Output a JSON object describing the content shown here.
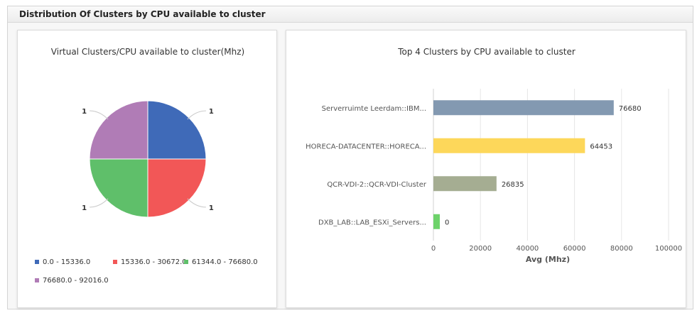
{
  "widget": {
    "title": "Distribution Of Clusters by CPU available to cluster"
  },
  "chart_data": [
    {
      "type": "pie",
      "title": "Virtual Clusters/CPU available to cluster(Mhz)",
      "slices": [
        {
          "label": "0.0 - 15336.0",
          "value": 1,
          "color": "#3f6ab8"
        },
        {
          "label": "15336.0 - 30672.0",
          "value": 1,
          "color": "#f25757"
        },
        {
          "label": "61344.0 - 76680.0",
          "value": 1,
          "color": "#5fbf6a"
        },
        {
          "label": "76680.0 - 92016.0",
          "value": 1,
          "color": "#b07cb6"
        }
      ],
      "legend_position": "bottom"
    },
    {
      "type": "bar",
      "orientation": "horizontal",
      "title": "Top 4 Clusters by CPU available to cluster",
      "categories": [
        "Serverruimte Leerdam::IBM...",
        "HORECA-DATACENTER::HORECA...",
        "QCR-VDI-2::QCR-VDI-Cluster",
        "DXB_LAB::LAB_ESXi_Servers..."
      ],
      "values": [
        76680,
        64453,
        26835,
        0
      ],
      "data_labels": [
        "76680",
        "64453",
        "26835",
        "0"
      ],
      "colors": [
        "#8399b1",
        "#fdd75a",
        "#a5ad92",
        "#6dd26a"
      ],
      "xlabel": "Avg (Mhz)",
      "ylabel": "",
      "xlim": [
        0,
        100000
      ],
      "xticks": [
        0,
        20000,
        40000,
        60000,
        80000,
        100000
      ],
      "xtick_labels": [
        "0",
        "20000",
        "40000",
        "60000",
        "80000",
        "100000"
      ],
      "grid": true
    }
  ]
}
